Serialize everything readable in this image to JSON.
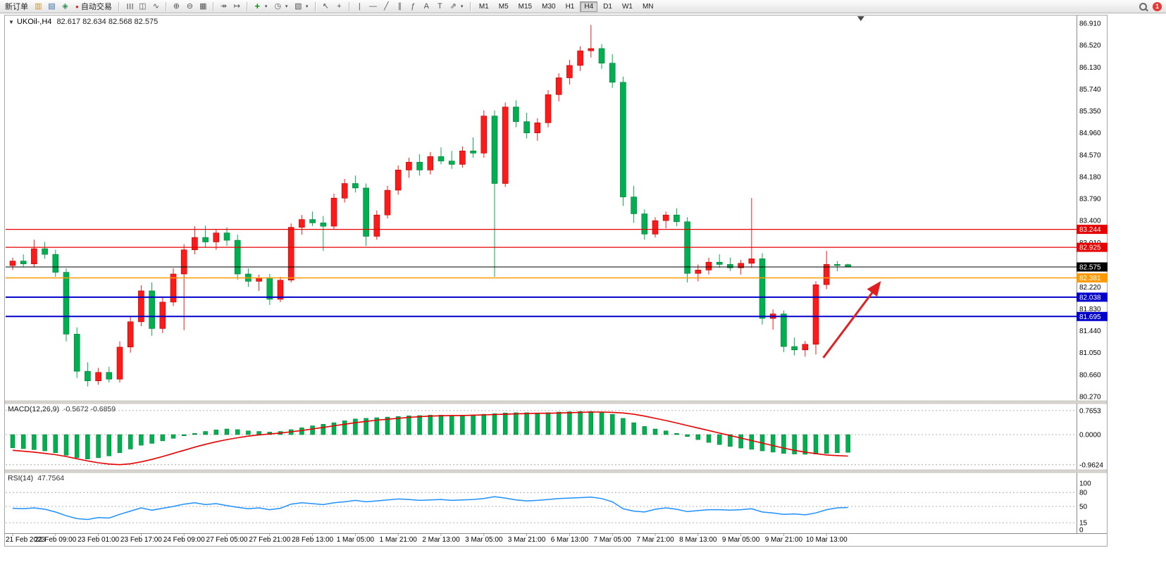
{
  "app": {
    "notification_count": "1"
  },
  "toolbar": {
    "new_order_label": "新订单",
    "autotrading_label": "自动交易",
    "timeframes": [
      "M1",
      "M5",
      "M15",
      "M30",
      "H1",
      "H4",
      "D1",
      "W1",
      "MN"
    ],
    "active_timeframe": "H4",
    "icons": {
      "chart_window": "▥",
      "market_watch": "▤",
      "navigator": "◈",
      "autotrading_dot": "●",
      "bar_chart": "☰",
      "candlestick": "◫",
      "line_chart": "∿",
      "zoom_in": "⊕",
      "zoom_out": "⊖",
      "tile_windows": "▦",
      "auto_scroll": "↠",
      "chart_shift": "↦",
      "indicators_plus": "+",
      "periods_clock": "◷",
      "templates": "▧",
      "cursor": "↖",
      "crosshair": "+",
      "vertical_line": "|",
      "horizontal_line": "—",
      "trendline": "╱",
      "channel": "∥",
      "fibonacci": "ƒ",
      "text": "A",
      "text_label": "T",
      "arrows": "⇗",
      "caret": "▾",
      "one_click": "▼"
    }
  },
  "chart": {
    "symbol_period": "UKOil-,H4",
    "ohlc_text": "82.617 82.634 82.568 82.575",
    "price_axis_ticks": [
      "86.910",
      "86.520",
      "86.130",
      "85.740",
      "85.350",
      "84.960",
      "84.570",
      "84.180",
      "83.790",
      "83.400",
      "83.010",
      "82.610",
      "82.220",
      "81.830",
      "81.440",
      "81.050",
      "80.660",
      "80.270"
    ],
    "lines": [
      {
        "value": 83.244,
        "label": "83.244",
        "color": "#e60000",
        "width": 1.3
      },
      {
        "value": 82.925,
        "label": "82.925",
        "color": "#e60000",
        "width": 1.3
      },
      {
        "value": 82.575,
        "label": "82.575",
        "color": "#000000",
        "width": 1
      },
      {
        "value": 82.381,
        "label": "82.381",
        "color": "#ff9900",
        "width": 1.5
      },
      {
        "value": 82.038,
        "label": "82.038",
        "color": "#0000cc",
        "width": 2
      },
      {
        "value": 81.695,
        "label": "81.695",
        "color": "#0000cc",
        "width": 2
      }
    ],
    "time_axis": {
      "stride": 4,
      "labels": [
        "21 Feb 2023",
        "22 Feb 09:00",
        "23 Feb 01:00",
        "23 Feb 17:00",
        "24 Feb 09:00",
        "27 Feb 05:00",
        "27 Feb 21:00",
        "28 Feb 13:00",
        "1 Mar 05:00",
        "1 Mar 21:00",
        "2 Mar 13:00",
        "3 Mar 05:00",
        "3 Mar 21:00",
        "6 Mar 13:00",
        "7 Mar 05:00",
        "7 Mar 21:00",
        "8 Mar 13:00",
        "9 Mar 05:00",
        "9 Mar 21:00",
        "10 Mar 13:00"
      ]
    }
  },
  "chart_data": [
    {
      "type": "candlestick",
      "title": "UKOil-,H4",
      "up_color": "#ff1a1a",
      "down_color": "#00b050",
      "ylim": [
        80.27,
        86.91
      ],
      "ohlc": [
        [
          82.6,
          82.74,
          82.52,
          82.68
        ],
        [
          82.68,
          82.8,
          82.58,
          82.63
        ],
        [
          82.63,
          83.06,
          82.58,
          82.9
        ],
        [
          82.9,
          83.02,
          82.72,
          82.8
        ],
        [
          82.8,
          82.88,
          82.4,
          82.48
        ],
        [
          82.48,
          82.55,
          81.25,
          81.38
        ],
        [
          81.38,
          81.5,
          80.6,
          80.72
        ],
        [
          80.72,
          80.88,
          80.45,
          80.55
        ],
        [
          80.55,
          80.78,
          80.48,
          80.7
        ],
        [
          80.7,
          80.8,
          80.52,
          80.58
        ],
        [
          80.58,
          81.25,
          80.52,
          81.15
        ],
        [
          81.15,
          81.7,
          81.05,
          81.6
        ],
        [
          81.6,
          82.25,
          81.52,
          82.15
        ],
        [
          82.15,
          82.3,
          81.35,
          81.48
        ],
        [
          81.48,
          82.05,
          81.4,
          81.95
        ],
        [
          81.95,
          82.55,
          81.88,
          82.45
        ],
        [
          82.45,
          82.98,
          81.45,
          82.88
        ],
        [
          82.88,
          83.3,
          82.8,
          83.1
        ],
        [
          83.1,
          83.31,
          82.92,
          83.02
        ],
        [
          83.02,
          83.24,
          82.88,
          83.18
        ],
        [
          83.18,
          83.28,
          82.95,
          83.05
        ],
        [
          83.05,
          83.15,
          82.35,
          82.45
        ],
        [
          82.45,
          82.55,
          82.22,
          82.32
        ],
        [
          82.32,
          82.44,
          82.15,
          82.38
        ],
        [
          82.38,
          82.45,
          81.9,
          82.0
        ],
        [
          82.0,
          82.4,
          81.95,
          82.34
        ],
        [
          82.34,
          83.35,
          82.3,
          83.28
        ],
        [
          83.28,
          83.5,
          83.15,
          83.42
        ],
        [
          83.42,
          83.56,
          83.3,
          83.36
        ],
        [
          83.36,
          83.48,
          82.86,
          83.3
        ],
        [
          83.3,
          83.88,
          83.24,
          83.8
        ],
        [
          83.8,
          84.14,
          83.72,
          84.06
        ],
        [
          84.06,
          84.2,
          83.9,
          83.98
        ],
        [
          83.98,
          84.06,
          82.95,
          83.12
        ],
        [
          83.12,
          83.58,
          83.06,
          83.5
        ],
        [
          83.5,
          84.02,
          83.44,
          83.94
        ],
        [
          83.94,
          84.38,
          83.86,
          84.3
        ],
        [
          84.3,
          84.52,
          84.16,
          84.44
        ],
        [
          84.44,
          84.58,
          84.2,
          84.3
        ],
        [
          84.3,
          84.62,
          84.22,
          84.54
        ],
        [
          84.54,
          84.7,
          84.4,
          84.46
        ],
        [
          84.46,
          84.64,
          84.32,
          84.4
        ],
        [
          84.4,
          84.72,
          84.34,
          84.64
        ],
        [
          84.64,
          84.88,
          84.52,
          84.6
        ],
        [
          84.6,
          85.36,
          84.52,
          85.26
        ],
        [
          85.26,
          85.36,
          82.4,
          84.06
        ],
        [
          84.06,
          85.5,
          84.0,
          85.42
        ],
        [
          85.42,
          85.54,
          85.06,
          85.16
        ],
        [
          85.16,
          85.32,
          84.86,
          84.96
        ],
        [
          84.96,
          85.22,
          84.82,
          85.14
        ],
        [
          85.14,
          85.72,
          85.06,
          85.64
        ],
        [
          85.64,
          86.02,
          85.52,
          85.94
        ],
        [
          85.94,
          86.26,
          85.82,
          86.16
        ],
        [
          86.16,
          86.5,
          86.06,
          86.42
        ],
        [
          86.42,
          86.88,
          86.3,
          86.46
        ],
        [
          86.46,
          86.54,
          86.1,
          86.2
        ],
        [
          86.2,
          86.36,
          85.76,
          85.86
        ],
        [
          85.86,
          85.96,
          83.66,
          83.82
        ],
        [
          83.82,
          84.02,
          83.36,
          83.52
        ],
        [
          83.52,
          83.6,
          83.06,
          83.16
        ],
        [
          83.16,
          83.46,
          83.1,
          83.4
        ],
        [
          83.4,
          83.56,
          83.26,
          83.5
        ],
        [
          83.5,
          83.62,
          83.3,
          83.38
        ],
        [
          83.38,
          83.46,
          82.3,
          82.46
        ],
        [
          82.46,
          82.62,
          82.32,
          82.52
        ],
        [
          82.52,
          82.74,
          82.44,
          82.66
        ],
        [
          82.66,
          82.8,
          82.56,
          82.62
        ],
        [
          82.62,
          82.74,
          82.5,
          82.56
        ],
        [
          82.56,
          82.7,
          82.44,
          82.64
        ],
        [
          82.64,
          83.8,
          82.56,
          82.72
        ],
        [
          82.72,
          82.82,
          81.55,
          81.66
        ],
        [
          81.66,
          81.82,
          81.46,
          81.74
        ],
        [
          81.74,
          81.8,
          81.06,
          81.16
        ],
        [
          81.16,
          81.32,
          81.0,
          81.1
        ],
        [
          81.1,
          81.26,
          80.98,
          81.2
        ],
        [
          81.2,
          82.32,
          81.02,
          82.26
        ],
        [
          82.26,
          82.86,
          82.18,
          82.62
        ],
        [
          82.62,
          82.68,
          82.5,
          82.6
        ],
        [
          82.617,
          82.634,
          82.568,
          82.575
        ]
      ]
    },
    {
      "type": "bar",
      "name": "MACD",
      "label": "MACD(12,26,9)",
      "values_text": "-0.5672 -0.6859",
      "main_current": -0.5672,
      "signal_current": -0.6859,
      "ylim": [
        -0.9624,
        0.7653
      ],
      "ticks": [
        "0.7653",
        "0.0000",
        "-0.9624"
      ],
      "tick_values": [
        0.7653,
        0,
        -0.9624
      ],
      "bar_color": "#00b050",
      "signal_color": "#e60000",
      "histogram": [
        -0.42,
        -0.45,
        -0.48,
        -0.52,
        -0.58,
        -0.66,
        -0.74,
        -0.78,
        -0.74,
        -0.68,
        -0.58,
        -0.46,
        -0.34,
        -0.28,
        -0.2,
        -0.12,
        -0.04,
        0.04,
        0.1,
        0.15,
        0.18,
        0.16,
        0.12,
        0.1,
        0.08,
        0.1,
        0.16,
        0.22,
        0.28,
        0.33,
        0.38,
        0.44,
        0.5,
        0.52,
        0.54,
        0.56,
        0.58,
        0.6,
        0.61,
        0.62,
        0.62,
        0.61,
        0.62,
        0.63,
        0.65,
        0.67,
        0.69,
        0.7,
        0.7,
        0.69,
        0.7,
        0.72,
        0.73,
        0.74,
        0.74,
        0.72,
        0.65,
        0.52,
        0.38,
        0.26,
        0.18,
        0.12,
        0.04,
        -0.06,
        -0.16,
        -0.25,
        -0.32,
        -0.38,
        -0.43,
        -0.47,
        -0.52,
        -0.56,
        -0.6,
        -0.62,
        -0.63,
        -0.62,
        -0.6,
        -0.58,
        -0.5672
      ],
      "signal": [
        -0.5,
        -0.53,
        -0.56,
        -0.6,
        -0.64,
        -0.7,
        -0.77,
        -0.84,
        -0.9,
        -0.94,
        -0.96,
        -0.93,
        -0.87,
        -0.79,
        -0.7,
        -0.6,
        -0.5,
        -0.4,
        -0.31,
        -0.23,
        -0.16,
        -0.1,
        -0.05,
        -0.01,
        0.02,
        0.05,
        0.09,
        0.13,
        0.18,
        0.23,
        0.28,
        0.33,
        0.38,
        0.42,
        0.46,
        0.49,
        0.52,
        0.55,
        0.57,
        0.59,
        0.6,
        0.61,
        0.61,
        0.62,
        0.63,
        0.64,
        0.65,
        0.66,
        0.67,
        0.68,
        0.68,
        0.69,
        0.7,
        0.71,
        0.72,
        0.72,
        0.71,
        0.69,
        0.65,
        0.59,
        0.52,
        0.45,
        0.37,
        0.29,
        0.21,
        0.13,
        0.05,
        -0.03,
        -0.11,
        -0.19,
        -0.27,
        -0.35,
        -0.43,
        -0.5,
        -0.56,
        -0.61,
        -0.65,
        -0.67,
        -0.6859
      ]
    },
    {
      "type": "line",
      "name": "RSI",
      "label": "RSI(14)",
      "value_text": "47.7564",
      "current": 47.7564,
      "ylim": [
        0,
        100
      ],
      "levels": [
        80,
        50,
        15
      ],
      "ticks": [
        "100",
        "80",
        "50",
        "15",
        "0"
      ],
      "tick_values": [
        100,
        80,
        50,
        15,
        0
      ],
      "line_color": "#1e90ff",
      "values": [
        46,
        45,
        47,
        44,
        38,
        30,
        24,
        22,
        26,
        25,
        33,
        40,
        47,
        42,
        46,
        50,
        55,
        58,
        54,
        56,
        52,
        48,
        45,
        47,
        43,
        46,
        55,
        58,
        56,
        54,
        58,
        60,
        63,
        60,
        62,
        64,
        66,
        65,
        63,
        64,
        65,
        63,
        64,
        65,
        67,
        71,
        68,
        64,
        62,
        63,
        65,
        67,
        68,
        69,
        70,
        67,
        60,
        45,
        40,
        38,
        44,
        47,
        44,
        39,
        41,
        43,
        43,
        42,
        43,
        45,
        38,
        36,
        33,
        34,
        32,
        36,
        43,
        47,
        47.7564
      ]
    }
  ],
  "annotations": {
    "trend_arrow": {
      "from_index": 75.7,
      "from_price": 80.96,
      "to_index": 80.9,
      "to_price": 82.28,
      "color": "#e02020",
      "width": 3
    },
    "shift_marker_index": 79.2
  }
}
